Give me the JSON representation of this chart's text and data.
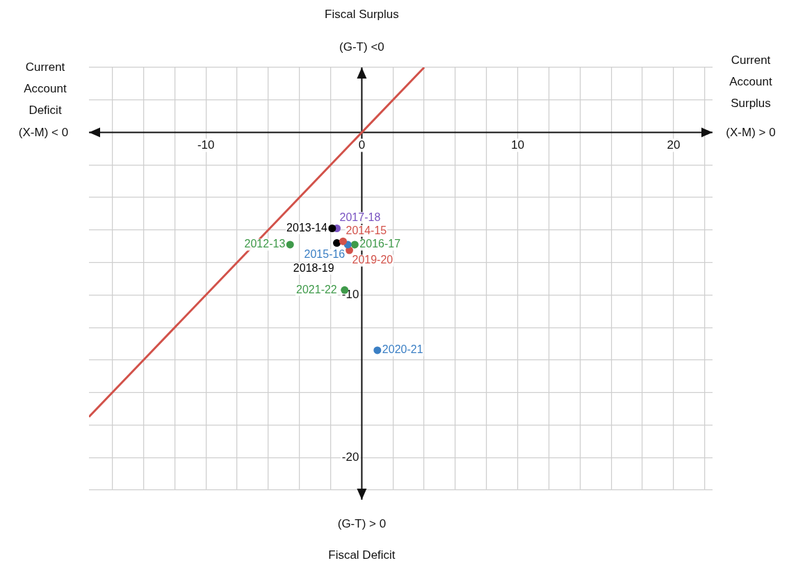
{
  "chart_data": {
    "type": "scatter",
    "annotations": [
      "Fiscal Surplus",
      "(G-T) <0",
      "(G-T) > 0",
      "Fiscal Deficit",
      "Current Account Deficit",
      "(X-M) < 0",
      "Current Account Surplus",
      "(X-M) > 0"
    ],
    "xlim": [
      -17.5,
      22.5
    ],
    "ylim": [
      -22,
      4
    ],
    "xticks": [
      {
        "value": -16,
        "label": null
      },
      {
        "value": -14,
        "label": null
      },
      {
        "value": -12,
        "label": null
      },
      -10,
      {
        "value": -8,
        "label": null
      },
      {
        "value": -6,
        "label": null
      },
      {
        "value": -4,
        "label": null
      },
      {
        "value": -2,
        "label": null
      },
      0,
      {
        "value": 2,
        "label": null
      },
      {
        "value": 4,
        "label": null
      },
      {
        "value": 6,
        "label": null
      },
      {
        "value": 8,
        "label": null
      },
      10,
      {
        "value": 12,
        "label": null
      },
      {
        "value": 14,
        "label": null
      },
      {
        "value": 16,
        "label": null
      },
      {
        "value": 18,
        "label": null
      },
      20,
      {
        "value": 22,
        "label": null
      }
    ],
    "yticks": [
      {
        "value": -22,
        "label": null
      },
      -20,
      {
        "value": -18,
        "label": null
      },
      {
        "value": -16,
        "label": null
      },
      {
        "value": -14,
        "label": null
      },
      {
        "value": -12,
        "label": null
      },
      -10,
      {
        "value": -8,
        "label": null
      },
      {
        "value": -6,
        "label": null
      },
      {
        "value": -4,
        "label": null
      },
      {
        "value": -2,
        "label": null
      },
      {
        "value": 0,
        "label": null
      },
      {
        "value": 2,
        "label": null
      },
      {
        "value": 4,
        "label": null
      }
    ],
    "grid": true,
    "legend": false,
    "marker": "circle",
    "series": [
      {
        "type": "line",
        "color": "#d2524a",
        "x": [
          -17.5,
          4
        ],
        "values": [
          -17.5,
          4
        ],
        "marker": "none"
      },
      {
        "name": "2012-13",
        "color": "#3f9a4a",
        "x": [
          -4.6
        ],
        "values": [
          -6.9
        ]
      },
      {
        "name": "2013-14",
        "color": "#000000",
        "x": [
          -1.9
        ],
        "values": [
          -5.9
        ]
      },
      {
        "name": "2014-15",
        "color": "#d2524a",
        "x": [
          -1.2
        ],
        "values": [
          -6.7
        ]
      },
      {
        "name": "2015-16",
        "color": "#3b7fc4",
        "x": [
          -0.9
        ],
        "values": [
          -6.9
        ]
      },
      {
        "name": "2016-17",
        "color": "#3f9a4a",
        "x": [
          -0.45
        ],
        "values": [
          -6.9
        ]
      },
      {
        "name": "2017-18",
        "color": "#7a54c2",
        "x": [
          -1.6
        ],
        "values": [
          -5.9
        ]
      },
      {
        "name": "2018-19",
        "color": "#000000",
        "x": [
          -1.6
        ],
        "values": [
          -6.8
        ]
      },
      {
        "name": "2019-20",
        "color": "#d2524a",
        "x": [
          -0.8
        ],
        "values": [
          -7.25
        ]
      },
      {
        "name": "2020-21",
        "color": "#3b7fc4",
        "x": [
          1.0
        ],
        "values": [
          -13.4
        ]
      },
      {
        "name": "2021-22",
        "color": "#3f9a4a",
        "x": [
          -1.1
        ],
        "values": [
          -9.7
        ]
      }
    ]
  }
}
